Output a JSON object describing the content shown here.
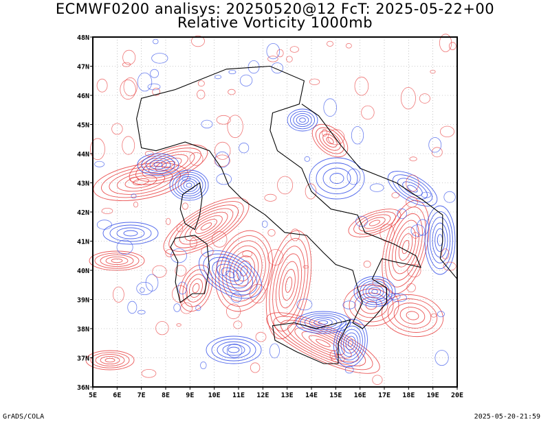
{
  "header": {
    "title_line1": "ECMWF0200 analisys: 20250520@12 FcT: 2025-05-22+00",
    "title_line2": "Relative Vorticity 1000mb"
  },
  "footer": {
    "credit": "GrADS/COLA",
    "timestamp": "2025-05-20-21:59"
  },
  "map": {
    "lon_labels": [
      "5E",
      "6E",
      "7E",
      "8E",
      "9E",
      "10E",
      "11E",
      "12E",
      "13E",
      "14E",
      "15E",
      "16E",
      "17E",
      "18E",
      "19E",
      "20E"
    ],
    "lat_labels": [
      "36N",
      "37N",
      "38N",
      "39N",
      "40N",
      "41N",
      "42N",
      "43N",
      "44N",
      "45N",
      "46N",
      "47N",
      "48N"
    ],
    "lon_range": [
      5,
      20
    ],
    "lat_range": [
      36,
      48
    ],
    "contour_colors": {
      "positive": "#e83a3a",
      "negative": "#2b48e8",
      "grid": "#9a9a9a",
      "coast": "#000000"
    }
  }
}
